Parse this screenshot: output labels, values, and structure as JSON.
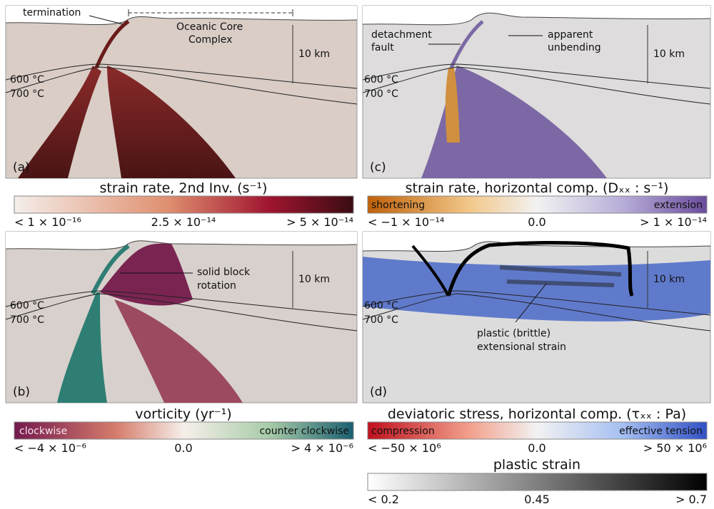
{
  "panels": {
    "a": {
      "label": "(a)",
      "isotherms": [
        "600 °C",
        "700 °C"
      ],
      "scale": "10 km",
      "termination": "termination",
      "occ": [
        "Oceanic Core",
        "Complex"
      ]
    },
    "c": {
      "label": "(c)",
      "isotherms": [
        "600 °C",
        "700 °C"
      ],
      "scale": "10 km",
      "fault": [
        "detachment",
        "fault"
      ],
      "unbending": [
        "apparent",
        "unbending"
      ]
    },
    "b": {
      "label": "(b)",
      "isotherms": [
        "600 °C",
        "700 °C"
      ],
      "scale": "10 km",
      "rotation": [
        "solid block",
        "rotation"
      ]
    },
    "d": {
      "label": "(d)",
      "isotherms": [
        "600 °C",
        "700 °C"
      ],
      "scale": "10 km",
      "strain": [
        "plastic (brittle)",
        "extensional strain"
      ]
    }
  },
  "colorbars": {
    "a": {
      "title": "strain rate, 2nd Inv. (s⁻¹)",
      "min": "< 1 × 10⁻¹⁶",
      "mid": "2.5 × 10⁻¹⁴",
      "max": "> 5 × 10⁻¹⁴"
    },
    "c": {
      "title": "strain rate, horizontal comp. (Dₓₓ : s⁻¹)",
      "left": "shortening",
      "right": "extension",
      "min": "< −1 × 10⁻¹⁴",
      "mid": "0.0",
      "max": "> 1 × 10⁻¹⁴"
    },
    "b": {
      "title": "vorticity (yr⁻¹)",
      "left": "clockwise",
      "right": "counter clockwise",
      "min": "< −4 × 10⁻⁶",
      "mid": "0.0",
      "max": "> 4 × 10⁻⁶"
    },
    "d": {
      "title": "deviatoric stress, horizontal comp. (τₓₓ : Pa)",
      "left": "compression",
      "right": "effective tension",
      "min": "< −50 × 10⁶",
      "mid": "0.0",
      "max": "> 50 × 10⁶"
    },
    "p": {
      "title": "plastic strain",
      "min": "< 0.2",
      "mid": "0.45",
      "max": "> 0.7"
    }
  }
}
